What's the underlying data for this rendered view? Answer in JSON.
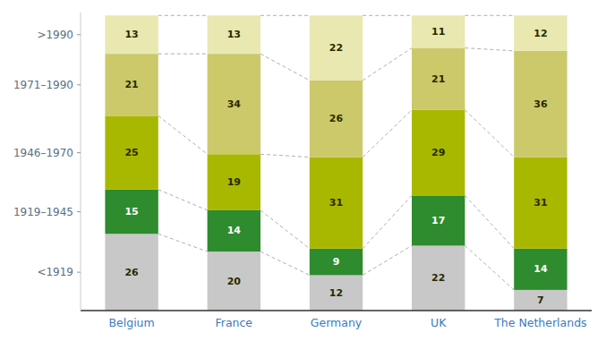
{
  "chart_data": {
    "type": "bar",
    "stacked": true,
    "data_labels": true,
    "grid": false,
    "categories": [
      "Belgium",
      "France",
      "Germany",
      "UK",
      "The Netherlands"
    ],
    "series": [
      {
        "color": "#c8c8c8",
        "values": [
          26,
          20,
          12,
          22,
          7
        ]
      },
      {
        "color": "#2e8b2e",
        "values": [
          15,
          14,
          9,
          17,
          14
        ]
      },
      {
        "color": "#a8b800",
        "values": [
          25,
          19,
          31,
          29,
          31
        ]
      },
      {
        "color": "#ccc96a",
        "values": [
          21,
          34,
          26,
          21,
          36
        ]
      },
      {
        "color": "#e8e8b0",
        "values": [
          13,
          13,
          22,
          11,
          12
        ]
      }
    ],
    "ylim": [
      0,
      101
    ],
    "yticks": [
      {
        "value": 13,
        "label": "<1919"
      },
      {
        "value": 33.5,
        "label": "1919–1945"
      },
      {
        "value": 53.5,
        "label": "1946–1970"
      },
      {
        "value": 76.5,
        "label": "1971–1990"
      },
      {
        "value": 93.5,
        "label": ">1990"
      }
    ]
  }
}
